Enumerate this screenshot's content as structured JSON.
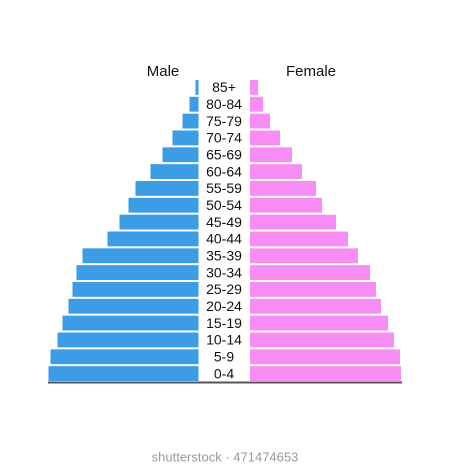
{
  "chart_data": {
    "type": "pyramid",
    "categories": [
      "85+",
      "80-84",
      "75-79",
      "70-74",
      "65-69",
      "60-64",
      "55-59",
      "50-54",
      "45-49",
      "40-44",
      "35-39",
      "30-34",
      "25-29",
      "20-24",
      "15-19",
      "10-14",
      "5-9",
      "0-4"
    ],
    "series": [
      {
        "name": "Male",
        "color": "#3b9de6",
        "values": [
          3,
          9,
          16,
          26,
          36,
          48,
          63,
          70,
          79,
          91,
          116,
          122,
          126,
          130,
          136,
          141,
          148,
          150
        ]
      },
      {
        "name": "Female",
        "color": "#f78ef5",
        "values": [
          8,
          13,
          20,
          30,
          42,
          52,
          66,
          72,
          86,
          98,
          108,
          120,
          126,
          131,
          138,
          144,
          150,
          151
        ]
      }
    ]
  },
  "watermark": "shutterstock · 471474653"
}
